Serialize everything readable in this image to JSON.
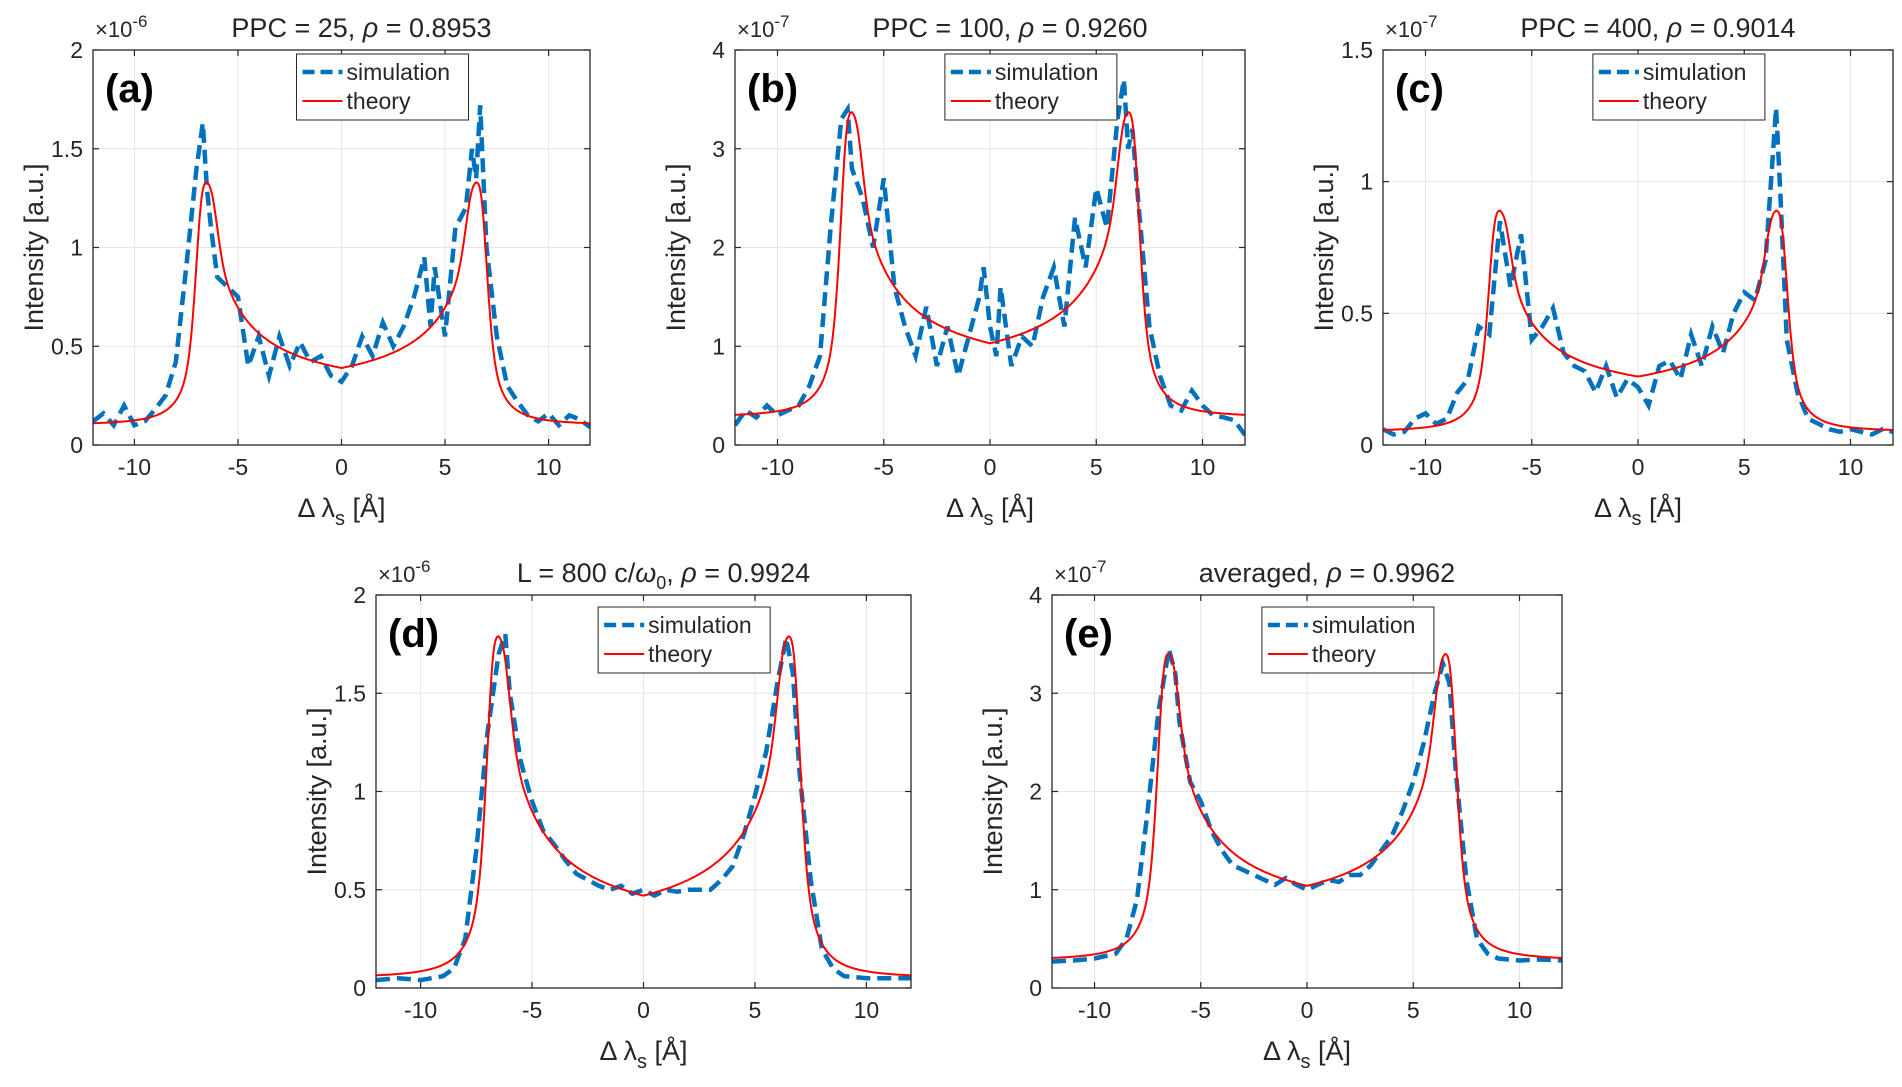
{
  "colors": {
    "simulation": "#0072BD",
    "theory": "#FF0000",
    "grid": "#E6E6E6",
    "axes": "#262626"
  },
  "chart_data": [
    {
      "type": "line",
      "panel_label": "(a)",
      "exponent": "-6",
      "title_parts": [
        "PPC = 25, ",
        "ρ",
        " = 0.8953"
      ],
      "xlabel": "Δ λ",
      "xlabel_sub": "s",
      "xlabel_unit": " [Å]",
      "ylabel": "Intensity [a.u.]",
      "xlim": [
        -12,
        12
      ],
      "ylim": [
        0,
        2
      ],
      "xticks": [
        -10,
        -5,
        0,
        5,
        10
      ],
      "xtick_labels": [
        "-10",
        "-5",
        "0",
        "5",
        "10"
      ],
      "yticks": [
        0,
        0.5,
        1,
        1.5,
        2
      ],
      "ytick_labels": [
        "0",
        "0.5",
        "1",
        "1.5",
        "2"
      ],
      "legend": [
        "simulation",
        "theory"
      ],
      "theory": {
        "baseline": 0.1,
        "peak": 1.33,
        "center_value": 0.39,
        "peak_pos": 6.5
      },
      "simulation_x": [
        -12,
        -11.5,
        -11,
        -10.5,
        -10,
        -9.5,
        -9,
        -8.5,
        -8,
        -7.5,
        -7,
        -6.7,
        -6.5,
        -6.3,
        -6,
        -5.5,
        -5,
        -4.5,
        -4,
        -3.5,
        -3,
        -2.5,
        -2,
        -1.5,
        -1,
        -0.5,
        0,
        0.5,
        1,
        1.5,
        2,
        2.5,
        3,
        3.5,
        4,
        4.3,
        4.5,
        5,
        5.5,
        6,
        6.3,
        6.5,
        6.7,
        7,
        7.5,
        8,
        8.5,
        9,
        9.5,
        10,
        10.5,
        11,
        11.5,
        12
      ],
      "simulation_y": [
        0.12,
        0.16,
        0.1,
        0.2,
        0.1,
        0.12,
        0.18,
        0.25,
        0.42,
        0.9,
        1.4,
        1.63,
        1.3,
        1.1,
        0.85,
        0.8,
        0.75,
        0.4,
        0.55,
        0.35,
        0.55,
        0.4,
        0.52,
        0.42,
        0.45,
        0.35,
        0.32,
        0.4,
        0.55,
        0.45,
        0.62,
        0.5,
        0.6,
        0.75,
        0.95,
        0.6,
        0.9,
        0.55,
        1.1,
        1.2,
        1.5,
        1.35,
        1.72,
        1.0,
        0.55,
        0.3,
        0.22,
        0.15,
        0.12,
        0.16,
        0.1,
        0.15,
        0.13,
        0.09
      ]
    },
    {
      "type": "line",
      "panel_label": "(b)",
      "exponent": "-7",
      "title_parts": [
        "PPC = 100, ",
        "ρ",
        " = 0.9260"
      ],
      "xlabel": "Δ λ",
      "xlabel_sub": "s",
      "xlabel_unit": " [Å]",
      "ylabel": "Intensity [a.u.]",
      "xlim": [
        -12,
        12
      ],
      "ylim": [
        0,
        4
      ],
      "xticks": [
        -10,
        -5,
        0,
        5,
        10
      ],
      "xtick_labels": [
        "-10",
        "-5",
        "0",
        "5",
        "10"
      ],
      "yticks": [
        0,
        1,
        2,
        3,
        4
      ],
      "ytick_labels": [
        "0",
        "1",
        "2",
        "3",
        "4"
      ],
      "legend": [
        "simulation",
        "theory"
      ],
      "theory": {
        "baseline": 0.28,
        "peak": 3.37,
        "center_value": 1.03,
        "peak_pos": 6.5
      },
      "simulation_x": [
        -12,
        -11.5,
        -11,
        -10.5,
        -10,
        -9.5,
        -9,
        -8.5,
        -8,
        -7.5,
        -7,
        -6.7,
        -6.5,
        -6,
        -5.5,
        -5,
        -4.5,
        -4,
        -3.5,
        -3,
        -2.5,
        -2,
        -1.5,
        -1,
        -0.5,
        -0.3,
        0,
        0.3,
        0.5,
        1,
        1.5,
        2,
        2.5,
        3,
        3.5,
        4,
        4.5,
        5,
        5.5,
        6,
        6.3,
        6.5,
        6.7,
        7,
        7.5,
        8,
        8.5,
        9,
        9.5,
        10,
        10.5,
        11,
        11.5,
        12
      ],
      "simulation_y": [
        0.2,
        0.35,
        0.28,
        0.4,
        0.3,
        0.35,
        0.4,
        0.6,
        0.9,
        2.2,
        3.3,
        3.4,
        2.8,
        2.5,
        2.0,
        2.7,
        1.6,
        1.2,
        0.9,
        1.4,
        0.8,
        1.2,
        0.7,
        1.1,
        1.5,
        1.8,
        1.2,
        0.9,
        1.6,
        0.8,
        1.1,
        1.0,
        1.5,
        1.8,
        1.2,
        2.3,
        1.8,
        2.6,
        2.2,
        3.3,
        3.7,
        3.0,
        3.2,
        2.4,
        1.2,
        0.7,
        0.4,
        0.35,
        0.55,
        0.4,
        0.3,
        0.28,
        0.25,
        0.1
      ]
    },
    {
      "type": "line",
      "panel_label": "(c)",
      "exponent": "-7",
      "title_parts": [
        "PPC = 400, ",
        "ρ",
        " = 0.9014"
      ],
      "xlabel": "Δ λ",
      "xlabel_sub": "s",
      "xlabel_unit": " [Å]",
      "ylabel": "Intensity [a.u.]",
      "xlim": [
        -12,
        12
      ],
      "ylim": [
        0,
        1.5
      ],
      "xticks": [
        -10,
        -5,
        0,
        5,
        10
      ],
      "xtick_labels": [
        "-10",
        "-5",
        "0",
        "5",
        "10"
      ],
      "yticks": [
        0,
        0.5,
        1,
        1.5
      ],
      "ytick_labels": [
        "0",
        "0.5",
        "1",
        "1.5"
      ],
      "legend": [
        "simulation",
        "theory"
      ],
      "theory": {
        "baseline": 0.05,
        "peak": 0.89,
        "center_value": 0.26,
        "peak_pos": 6.5
      },
      "simulation_x": [
        -12,
        -11.5,
        -11,
        -10.5,
        -10,
        -9.5,
        -9,
        -8.5,
        -8,
        -7.5,
        -7,
        -6.5,
        -6,
        -5.5,
        -5,
        -4.5,
        -4,
        -3.5,
        -3,
        -2.5,
        -2,
        -1.5,
        -1,
        -0.5,
        0,
        0.5,
        1,
        1.5,
        2,
        2.5,
        3,
        3.5,
        4,
        4.5,
        5,
        5.5,
        6,
        6.3,
        6.5,
        6.7,
        7,
        7.5,
        8,
        8.5,
        9,
        9.5,
        10,
        10.5,
        11,
        11.5,
        12
      ],
      "simulation_y": [
        0.06,
        0.04,
        0.05,
        0.1,
        0.12,
        0.08,
        0.1,
        0.2,
        0.25,
        0.45,
        0.42,
        0.85,
        0.6,
        0.8,
        0.4,
        0.45,
        0.52,
        0.35,
        0.3,
        0.28,
        0.2,
        0.3,
        0.18,
        0.25,
        0.22,
        0.15,
        0.3,
        0.32,
        0.25,
        0.42,
        0.3,
        0.45,
        0.35,
        0.5,
        0.58,
        0.55,
        0.7,
        1.05,
        1.28,
        0.95,
        0.4,
        0.2,
        0.1,
        0.08,
        0.06,
        0.05,
        0.06,
        0.05,
        0.04,
        0.06,
        0.05
      ]
    },
    {
      "type": "line",
      "panel_label": "(d)",
      "exponent": "-6",
      "title_parts": [
        "L = 800 c/",
        "ω",
        "0",
        ", ",
        "ρ",
        " = 0.9924"
      ],
      "xlabel": "Δ λ",
      "xlabel_sub": "s",
      "xlabel_unit": " [Å]",
      "ylabel": "Intensity [a.u.]",
      "xlim": [
        -12,
        12
      ],
      "ylim": [
        0,
        2
      ],
      "xticks": [
        -10,
        -5,
        0,
        5,
        10
      ],
      "xtick_labels": [
        "-10",
        "-5",
        "0",
        "5",
        "10"
      ],
      "yticks": [
        0,
        0.5,
        1,
        1.5,
        2
      ],
      "ytick_labels": [
        "0",
        "0.5",
        "1",
        "1.5",
        "2"
      ],
      "legend": [
        "simulation",
        "theory"
      ],
      "theory": {
        "baseline": 0.05,
        "peak": 1.79,
        "center_value": 0.47,
        "peak_pos": 6.5
      },
      "simulation_x": [
        -12,
        -11,
        -10,
        -9,
        -8.5,
        -8,
        -7.5,
        -7,
        -6.5,
        -6.2,
        -6,
        -5.5,
        -5,
        -4.5,
        -4,
        -3.5,
        -3,
        -2.5,
        -2,
        -1.5,
        -1,
        -0.5,
        0,
        0.5,
        1,
        1.5,
        2,
        2.5,
        3,
        3.5,
        4,
        4.5,
        5,
        5.5,
        6,
        6.4,
        6.7,
        7,
        7.5,
        8,
        8.5,
        9,
        10,
        11,
        12
      ],
      "simulation_y": [
        0.04,
        0.05,
        0.04,
        0.06,
        0.1,
        0.25,
        0.7,
        1.3,
        1.7,
        1.8,
        1.5,
        1.15,
        0.95,
        0.8,
        0.73,
        0.65,
        0.58,
        0.55,
        0.52,
        0.5,
        0.52,
        0.48,
        0.5,
        0.47,
        0.5,
        0.49,
        0.5,
        0.5,
        0.5,
        0.55,
        0.62,
        0.78,
        0.98,
        1.2,
        1.55,
        1.78,
        1.6,
        1.1,
        0.55,
        0.2,
        0.1,
        0.06,
        0.05,
        0.05,
        0.05
      ]
    },
    {
      "type": "line",
      "panel_label": "(e)",
      "exponent": "-7",
      "title_parts": [
        "averaged, ",
        "ρ",
        " = 0.9962"
      ],
      "xlabel": "Δ λ",
      "xlabel_sub": "s",
      "xlabel_unit": " [Å]",
      "ylabel": "Intensity [a.u.]",
      "xlim": [
        -12,
        12
      ],
      "ylim": [
        0,
        4
      ],
      "xticks": [
        -10,
        -5,
        0,
        5,
        10
      ],
      "xtick_labels": [
        "-10",
        "-5",
        "0",
        "5",
        "10"
      ],
      "yticks": [
        0,
        1,
        2,
        3,
        4
      ],
      "ytick_labels": [
        "0",
        "1",
        "2",
        "3",
        "4"
      ],
      "legend": [
        "simulation",
        "theory"
      ],
      "theory": {
        "baseline": 0.28,
        "peak": 3.4,
        "center_value": 1.04,
        "peak_pos": 6.5
      },
      "simulation_x": [
        -12,
        -11,
        -10,
        -9,
        -8.5,
        -8,
        -7.5,
        -7,
        -6.5,
        -6.2,
        -6,
        -5.5,
        -5,
        -4.5,
        -4,
        -3.5,
        -3,
        -2.5,
        -2,
        -1.5,
        -1,
        -0.5,
        0,
        0.5,
        1,
        1.5,
        2,
        2.5,
        3,
        3.5,
        4,
        4.5,
        5,
        5.5,
        6,
        6.4,
        6.7,
        7,
        7.5,
        8,
        8.5,
        9,
        10,
        11,
        12
      ],
      "simulation_y": [
        0.27,
        0.28,
        0.3,
        0.35,
        0.5,
        0.9,
        1.8,
        2.8,
        3.45,
        3.2,
        2.7,
        2.1,
        1.9,
        1.6,
        1.4,
        1.25,
        1.2,
        1.15,
        1.1,
        1.05,
        1.12,
        1.05,
        1.0,
        1.05,
        1.1,
        1.08,
        1.15,
        1.15,
        1.25,
        1.4,
        1.55,
        1.8,
        2.1,
        2.5,
        3.0,
        3.3,
        3.1,
        2.2,
        1.1,
        0.5,
        0.35,
        0.3,
        0.28,
        0.29,
        0.28
      ]
    }
  ]
}
